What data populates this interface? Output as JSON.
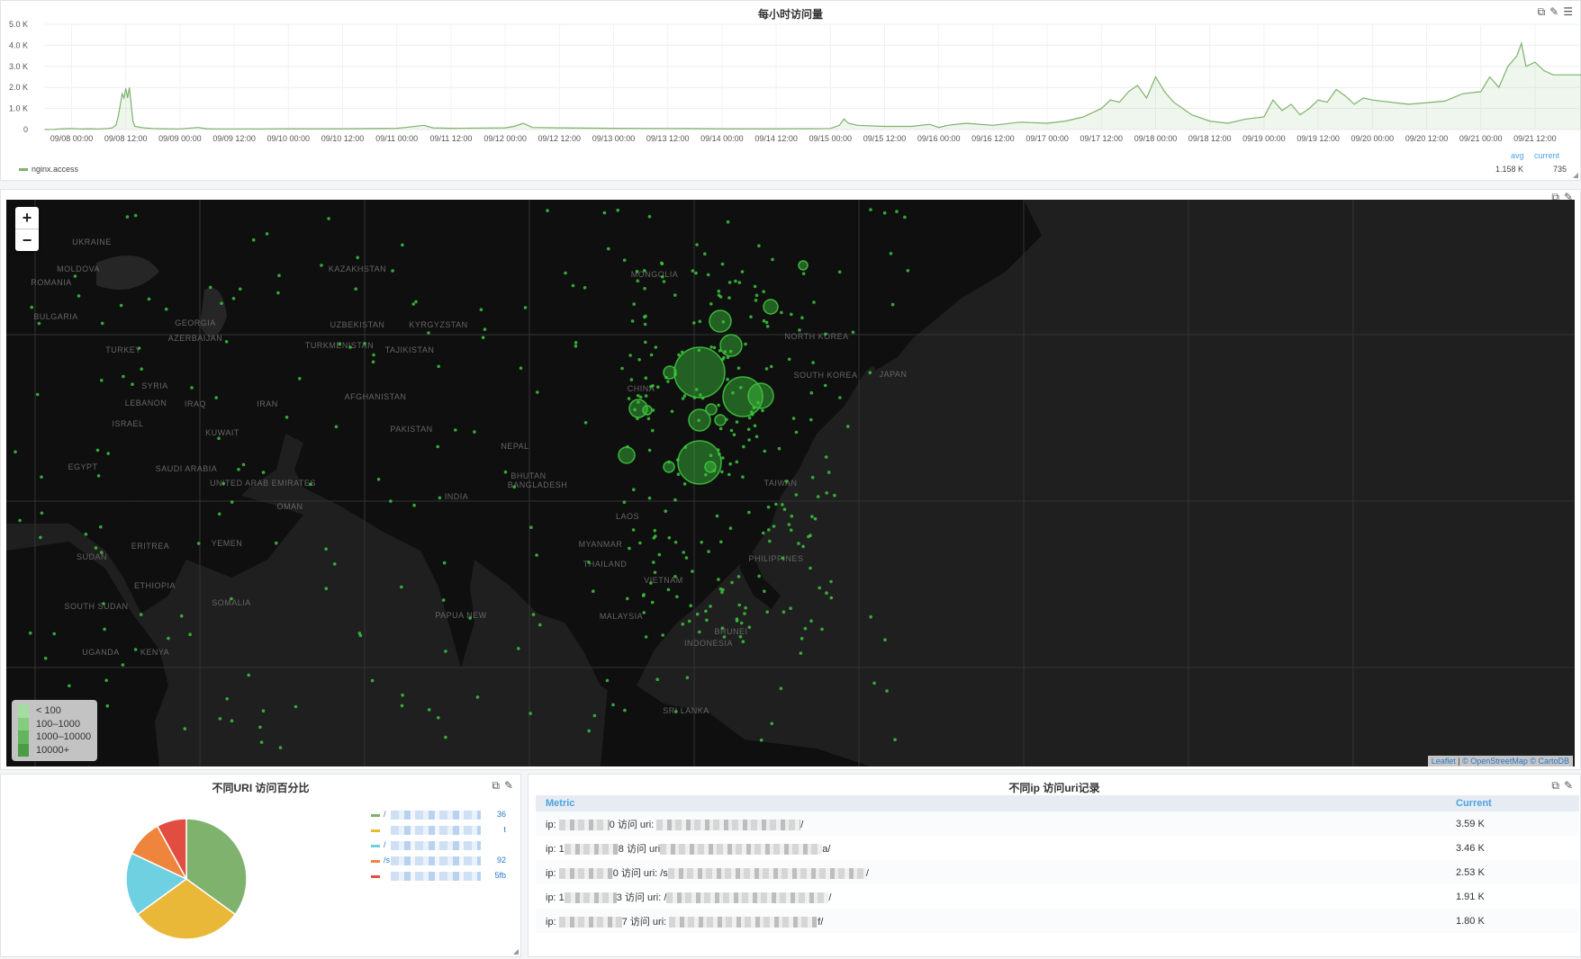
{
  "top_panel": {
    "title": "每小时访问量",
    "legend_series": "nginx.access",
    "avg_label": "avg",
    "current_label": "current",
    "avg_value": "1.158 K",
    "current_value": "735",
    "y_ticks": [
      "5.0 K",
      "4.0 K",
      "3.0 K",
      "2.0 K",
      "1.0 K",
      "0"
    ],
    "x_ticks": [
      "09/08 00:00",
      "09/08 12:00",
      "09/09 00:00",
      "09/09 12:00",
      "09/10 00:00",
      "09/10 12:00",
      "09/11 00:00",
      "09/11 12:00",
      "09/12 00:00",
      "09/12 12:00",
      "09/13 00:00",
      "09/13 12:00",
      "09/14 00:00",
      "09/14 12:00",
      "09/15 00:00",
      "09/15 12:00",
      "09/16 00:00",
      "09/16 12:00",
      "09/17 00:00",
      "09/17 12:00",
      "09/18 00:00",
      "09/18 12:00",
      "09/19 00:00",
      "09/19 12:00",
      "09/20 00:00",
      "09/20 12:00",
      "09/21 00:00",
      "09/21 12:00"
    ],
    "line_color": "#7eb26d"
  },
  "chart_data": [
    {
      "type": "area",
      "title": "每小时访问量",
      "x_unit": "hours since 09/08 00:00",
      "ylim": [
        0,
        5000
      ],
      "series": [
        {
          "name": "nginx.access",
          "points": [
            [
              -6,
              0
            ],
            [
              -4,
              10
            ],
            [
              -2,
              40
            ],
            [
              0,
              50
            ],
            [
              2,
              30
            ],
            [
              4,
              40
            ],
            [
              6,
              30
            ],
            [
              8,
              50
            ],
            [
              9,
              80
            ],
            [
              9.8,
              200
            ],
            [
              10.3,
              600
            ],
            [
              10.8,
              1200
            ],
            [
              11.2,
              1700
            ],
            [
              11.6,
              1500
            ],
            [
              12,
              1950
            ],
            [
              12.4,
              1500
            ],
            [
              12.8,
              2000
            ],
            [
              13.2,
              1200
            ],
            [
              13.6,
              400
            ],
            [
              14,
              150
            ],
            [
              16,
              80
            ],
            [
              18,
              50
            ],
            [
              20,
              40
            ],
            [
              24,
              30
            ],
            [
              28,
              100
            ],
            [
              30,
              40
            ],
            [
              32,
              30
            ],
            [
              36,
              30
            ],
            [
              40,
              30
            ],
            [
              48,
              40
            ],
            [
              60,
              40
            ],
            [
              72,
              60
            ],
            [
              74,
              100
            ],
            [
              78,
              200
            ],
            [
              80,
              80
            ],
            [
              84,
              60
            ],
            [
              96,
              80
            ],
            [
              98,
              150
            ],
            [
              100,
              300
            ],
            [
              102,
              100
            ],
            [
              108,
              80
            ],
            [
              120,
              60
            ],
            [
              132,
              50
            ],
            [
              144,
              40
            ],
            [
              156,
              40
            ],
            [
              168,
              50
            ],
            [
              170,
              200
            ],
            [
              171,
              500
            ],
            [
              172,
              300
            ],
            [
              174,
              200
            ],
            [
              180,
              150
            ],
            [
              186,
              150
            ],
            [
              190,
              250
            ],
            [
              192,
              100
            ],
            [
              194,
              200
            ],
            [
              198,
              300
            ],
            [
              204,
              200
            ],
            [
              210,
              350
            ],
            [
              216,
              300
            ],
            [
              220,
              400
            ],
            [
              224,
              600
            ],
            [
              228,
              1000
            ],
            [
              230,
              1400
            ],
            [
              232,
              1300
            ],
            [
              234,
              1800
            ],
            [
              236,
              2100
            ],
            [
              238,
              1500
            ],
            [
              240,
              2500
            ],
            [
              242,
              1800
            ],
            [
              244,
              1300
            ],
            [
              248,
              700
            ],
            [
              252,
              400
            ],
            [
              256,
              300
            ],
            [
              260,
              500
            ],
            [
              264,
              600
            ],
            [
              266,
              1400
            ],
            [
              268,
              900
            ],
            [
              270,
              1200
            ],
            [
              272,
              700
            ],
            [
              274,
              1000
            ],
            [
              276,
              1400
            ],
            [
              278,
              1300
            ],
            [
              280,
              1900
            ],
            [
              282,
              1600
            ],
            [
              284,
              1200
            ],
            [
              286,
              1500
            ],
            [
              288,
              1400
            ],
            [
              296,
              1200
            ],
            [
              304,
              1350
            ],
            [
              308,
              1700
            ],
            [
              312,
              1800
            ],
            [
              314,
              2500
            ],
            [
              316,
              2000
            ],
            [
              318,
              3000
            ],
            [
              320,
              3500
            ],
            [
              321,
              4100
            ],
            [
              322,
              3000
            ],
            [
              324,
              3200
            ],
            [
              326,
              2800
            ],
            [
              328,
              2600
            ],
            [
              336,
              2600
            ],
            [
              344,
              2650
            ],
            [
              350,
              2700
            ],
            [
              352,
              3000
            ],
            [
              354,
              3300
            ],
            [
              356,
              2800
            ],
            [
              358,
              3400
            ],
            [
              360,
              2500
            ],
            [
              362,
              3200
            ],
            [
              364,
              2500
            ],
            [
              366,
              1300
            ],
            [
              368,
              1200
            ],
            [
              374,
              1100
            ],
            [
              380,
              1150
            ],
            [
              386,
              1200
            ],
            [
              392,
              1300
            ],
            [
              394,
              1800
            ],
            [
              396,
              1400
            ],
            [
              398,
              1200
            ],
            [
              400,
              1700
            ],
            [
              402,
              1300
            ],
            [
              404,
              1500
            ],
            [
              406,
              800
            ],
            [
              408,
              1050
            ],
            [
              410,
              700
            ],
            [
              414,
              3500
            ],
            [
              415.5,
              600
            ],
            [
              420,
              600
            ],
            [
              432,
              450
            ],
            [
              438,
              600
            ],
            [
              440,
              3600
            ],
            [
              441.5,
              700
            ],
            [
              443,
              500
            ],
            [
              446,
              950
            ],
            [
              447,
              700
            ],
            [
              448,
              600
            ]
          ]
        }
      ]
    },
    {
      "type": "pie",
      "title": "不同URI 访问百分比",
      "values": [
        35,
        30,
        17,
        10,
        8
      ],
      "colors": [
        "#7eb26d",
        "#eab839",
        "#6ed0e0",
        "#ef843c",
        "#e24d42"
      ]
    },
    {
      "type": "table",
      "title": "不同ip 访问uri记录",
      "columns": [
        "Metric",
        "Current"
      ],
      "rows": [
        {
          "pre": "ip: ",
          "mid": "0 访问 uri: ",
          "end": "/",
          "value": "3.59 K"
        },
        {
          "pre": "ip: 1",
          "mid": "8 访问 uri",
          "end": "a/",
          "value": "3.46 K"
        },
        {
          "pre": "ip: ",
          "mid": "0 访问 uri: /s",
          "end": "/",
          "value": "2.53 K"
        },
        {
          "pre": "ip: 1",
          "mid": "3 访问 uri: /",
          "end": "/",
          "value": "1.91 K"
        },
        {
          "pre": "ip: ",
          "mid": "7 访问 uri: ",
          "end": "f/",
          "value": "1.80 K"
        }
      ]
    }
  ],
  "map": {
    "zoom_in": "+",
    "zoom_out": "−",
    "legend": [
      "< 100",
      "100–1000",
      "1000–10000",
      "10000+"
    ],
    "attribution_leaflet": "Leaflet",
    "attribution_osm": "© OpenStreetMap",
    "attribution_carto": "© CartoDB",
    "attribution_sep": "|",
    "countries": [
      "UKRAINE",
      "MOLDOVA",
      "ROMANIA",
      "BULGARIA",
      "GEORGIA",
      "AZERBAIJAN",
      "TURKEY",
      "SYRIA",
      "LEBANON",
      "ISRAEL",
      "IRAQ",
      "IRAN",
      "KUWAIT",
      "SAUDI ARABIA",
      "UNITED ARAB EMIRATES",
      "OMAN",
      "YEMEN",
      "EGYPT",
      "SUDAN",
      "ERITREA",
      "ETHIOPIA",
      "SOUTH SUDAN",
      "SOMALIA",
      "UGANDA",
      "KENYA",
      "KAZAKHSTAN",
      "UZBEKISTAN",
      "TURKMENISTAN",
      "KYRGYZSTAN",
      "TAJIKISTAN",
      "AFGHANISTAN",
      "PAKISTAN",
      "INDIA",
      "NEPAL",
      "BHUTAN",
      "BANGLADESH",
      "MYANMAR",
      "THAILAND",
      "LAOS",
      "VIETNAM",
      "CHINA",
      "MONGOLIA",
      "NORTH KOREA",
      "SOUTH KOREA",
      "JAPAN",
      "TAIWAN",
      "PHILIPPINES",
      "MALAYSIA",
      "BRUNEI",
      "INDONESIA",
      "SRI LANKA",
      "PAPUA NEW"
    ],
    "marker_color": "#3cc43c"
  },
  "pie_panel": {
    "title": "不同URI 访问百分比",
    "legend": [
      {
        "color": "#7eb26d",
        "prefix": "/",
        "suffix": "36"
      },
      {
        "color": "#eab839",
        "prefix": "",
        "suffix": "t"
      },
      {
        "color": "#6ed0e0",
        "prefix": "/",
        "suffix": ""
      },
      {
        "color": "#ef843c",
        "prefix": "/s",
        "suffix": "92"
      },
      {
        "color": "#e24d42",
        "prefix": "",
        "suffix": "5fb"
      }
    ]
  },
  "table_panel": {
    "title": "不同ip 访问uri记录",
    "col_metric": "Metric",
    "col_current": "Current"
  }
}
